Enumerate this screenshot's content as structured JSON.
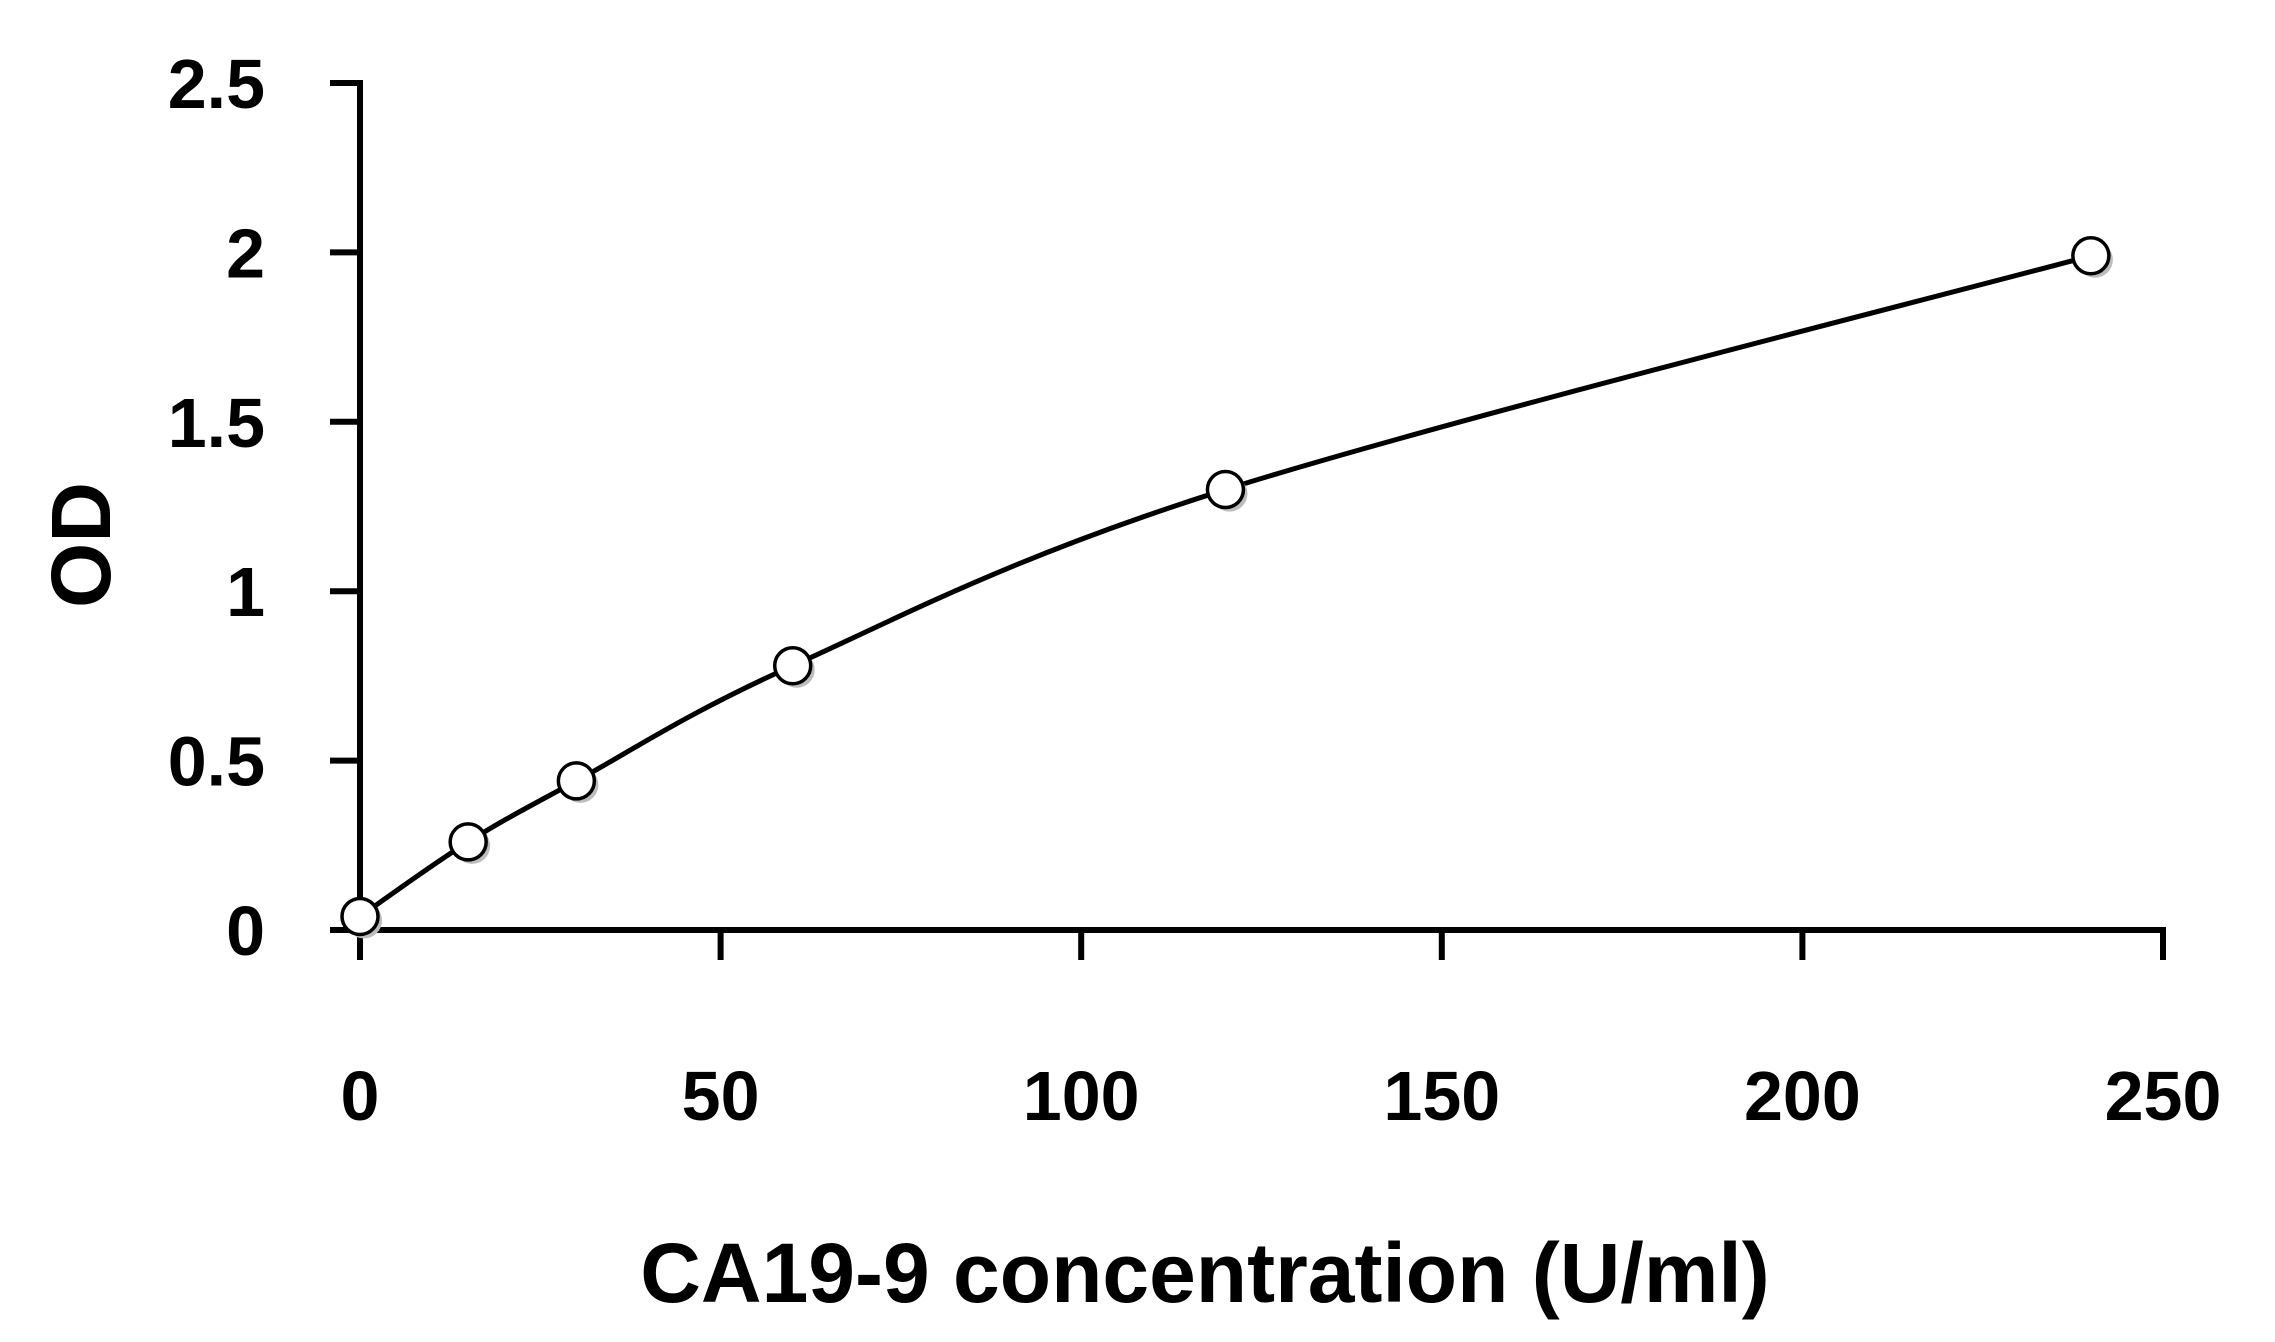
{
  "chart_data": {
    "type": "scatter",
    "title": "",
    "xlabel": "CA19-9 concentration (U/ml)",
    "ylabel": "OD",
    "xlim": [
      0,
      250
    ],
    "ylim": [
      0,
      2.5
    ],
    "x_ticks": [
      "0",
      "50",
      "100",
      "150",
      "200",
      "250"
    ],
    "y_ticks": [
      "0",
      "0.5",
      "1",
      "1.5",
      "2",
      "2.5"
    ],
    "grid": false,
    "legend": "none",
    "marker": "open-circle",
    "trendline": "smooth-fit",
    "series": [
      {
        "x": [
          0,
          15,
          30,
          60,
          120,
          240
        ],
        "y": [
          0.04,
          0.26,
          0.44,
          0.78,
          1.3,
          1.99
        ]
      }
    ]
  }
}
